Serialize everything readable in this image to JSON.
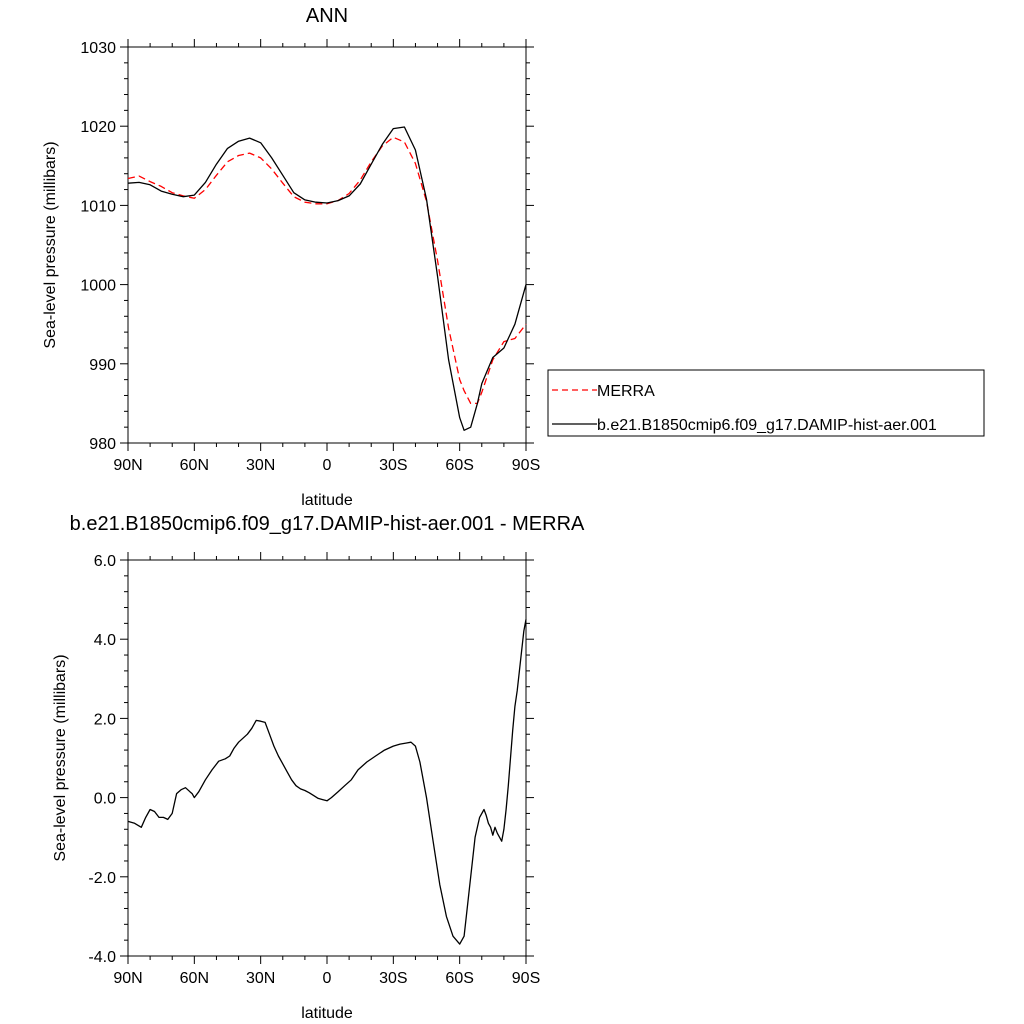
{
  "chart_data": [
    {
      "type": "line",
      "title": "ANN",
      "xlabel": "latitude",
      "ylabel": "Sea-level pressure (millibars)",
      "xlim": [
        90,
        -90
      ],
      "ylim": [
        980,
        1030
      ],
      "x_ticks": [
        90,
        60,
        30,
        0,
        -30,
        -60,
        -90
      ],
      "x_tick_labels": [
        "90N",
        "60N",
        "30N",
        "0",
        "30S",
        "60S",
        "90S"
      ],
      "y_ticks": [
        980,
        990,
        1000,
        1010,
        1020,
        1030
      ],
      "y_tick_labels": [
        "980",
        "990",
        "1000",
        "1010",
        "1020",
        "1030"
      ],
      "legend_position": "right",
      "series": [
        {
          "name": "MERRA",
          "color": "#ff0000",
          "dash": "dashed",
          "x": [
            90,
            85,
            80,
            75,
            70,
            65,
            60,
            55,
            50,
            45,
            40,
            35,
            30,
            25,
            20,
            15,
            10,
            5,
            0,
            -5,
            -10,
            -15,
            -20,
            -25,
            -30,
            -35,
            -40,
            -45,
            -50,
            -55,
            -60,
            -62,
            -65,
            -68,
            -70,
            -75,
            -80,
            -85,
            -90
          ],
          "y": [
            1013.4,
            1013.7,
            1013.0,
            1012.4,
            1011.6,
            1011.2,
            1010.9,
            1012.0,
            1013.8,
            1015.5,
            1016.3,
            1016.6,
            1016.0,
            1014.6,
            1012.8,
            1011.1,
            1010.4,
            1010.2,
            1010.2,
            1010.6,
            1011.5,
            1013.2,
            1015.5,
            1017.5,
            1018.6,
            1018.0,
            1015.3,
            1010.5,
            1003.0,
            994.5,
            988.0,
            986.6,
            985.0,
            985.0,
            986.4,
            990.5,
            992.8,
            993.2,
            995.0
          ]
        },
        {
          "name": "b.e21.B1850cmip6.f09_g17.DAMIP-hist-aer.001",
          "color": "#000000",
          "dash": "solid",
          "x": [
            90,
            85,
            80,
            75,
            70,
            65,
            60,
            55,
            50,
            45,
            40,
            35,
            30,
            25,
            20,
            15,
            10,
            5,
            0,
            -5,
            -10,
            -15,
            -20,
            -25,
            -30,
            -35,
            -40,
            -45,
            -50,
            -55,
            -60,
            -62,
            -65,
            -68,
            -70,
            -75,
            -80,
            -85,
            -90
          ],
          "y": [
            1012.8,
            1012.9,
            1012.6,
            1011.8,
            1011.4,
            1011.1,
            1011.3,
            1012.9,
            1015.2,
            1017.2,
            1018.1,
            1018.5,
            1017.9,
            1016.0,
            1013.8,
            1011.6,
            1010.7,
            1010.4,
            1010.3,
            1010.6,
            1011.2,
            1012.7,
            1015.2,
            1017.7,
            1019.7,
            1019.9,
            1017.0,
            1010.8,
            1001.0,
            990.5,
            983.2,
            981.6,
            982.0,
            985.0,
            987.5,
            990.8,
            992.0,
            995.0,
            1000.0
          ]
        }
      ]
    },
    {
      "type": "line",
      "title": "b.e21.B1850cmip6.f09_g17.DAMIP-hist-aer.001 - MERRA",
      "xlabel": "latitude",
      "ylabel": "Sea-level pressure (millibars)",
      "xlim": [
        90,
        -90
      ],
      "ylim": [
        -4,
        6
      ],
      "x_ticks": [
        90,
        60,
        30,
        0,
        -30,
        -60,
        -90
      ],
      "x_tick_labels": [
        "90N",
        "60N",
        "30N",
        "0",
        "30S",
        "60S",
        "90S"
      ],
      "y_ticks": [
        -4,
        -2,
        0,
        2,
        4,
        6
      ],
      "y_tick_labels": [
        "-4.0",
        "-2.0",
        "0.0",
        "2.0",
        "4.0",
        "6.0"
      ],
      "series": [
        {
          "color": "#000000",
          "dash": "solid",
          "x": [
            90,
            87,
            84,
            82,
            80,
            78,
            76,
            74,
            72,
            70,
            68,
            66,
            64,
            62,
            61,
            60,
            58,
            55,
            52,
            49,
            46,
            44,
            42,
            40,
            38,
            36,
            34,
            32,
            30,
            28,
            26,
            24,
            22,
            20,
            18,
            16,
            14,
            12,
            10,
            8,
            6,
            4,
            2,
            0,
            -2,
            -5,
            -8,
            -11,
            -14,
            -18,
            -22,
            -26,
            -30,
            -33,
            -36,
            -38,
            -40,
            -42,
            -45,
            -48,
            -51,
            -54,
            -57,
            -60,
            -62,
            -63,
            -65,
            -67,
            -69,
            -71,
            -72,
            -73,
            -74,
            -75,
            -76,
            -77,
            -78,
            -79,
            -80,
            -81,
            -82,
            -83,
            -84,
            -85,
            -86,
            -87,
            -88,
            -89,
            -90
          ],
          "y": [
            -0.6,
            -0.65,
            -0.75,
            -0.5,
            -0.3,
            -0.35,
            -0.5,
            -0.5,
            -0.55,
            -0.4,
            0.1,
            0.2,
            0.25,
            0.15,
            0.1,
            0.0,
            0.15,
            0.45,
            0.7,
            0.92,
            0.98,
            1.05,
            1.25,
            1.4,
            1.5,
            1.6,
            1.75,
            1.95,
            1.93,
            1.9,
            1.6,
            1.3,
            1.05,
            0.85,
            0.65,
            0.45,
            0.3,
            0.22,
            0.18,
            0.12,
            0.05,
            -0.02,
            -0.05,
            -0.08,
            0.0,
            0.15,
            0.3,
            0.45,
            0.7,
            0.9,
            1.05,
            1.2,
            1.3,
            1.35,
            1.38,
            1.4,
            1.3,
            0.9,
            0.0,
            -1.1,
            -2.2,
            -3.0,
            -3.5,
            -3.7,
            -3.5,
            -3.0,
            -2.0,
            -1.0,
            -0.5,
            -0.3,
            -0.45,
            -0.65,
            -0.75,
            -0.95,
            -0.75,
            -0.9,
            -1.0,
            -1.1,
            -0.8,
            -0.3,
            0.3,
            1.0,
            1.7,
            2.3,
            2.7,
            3.2,
            3.7,
            4.2,
            4.5
          ]
        }
      ]
    }
  ]
}
